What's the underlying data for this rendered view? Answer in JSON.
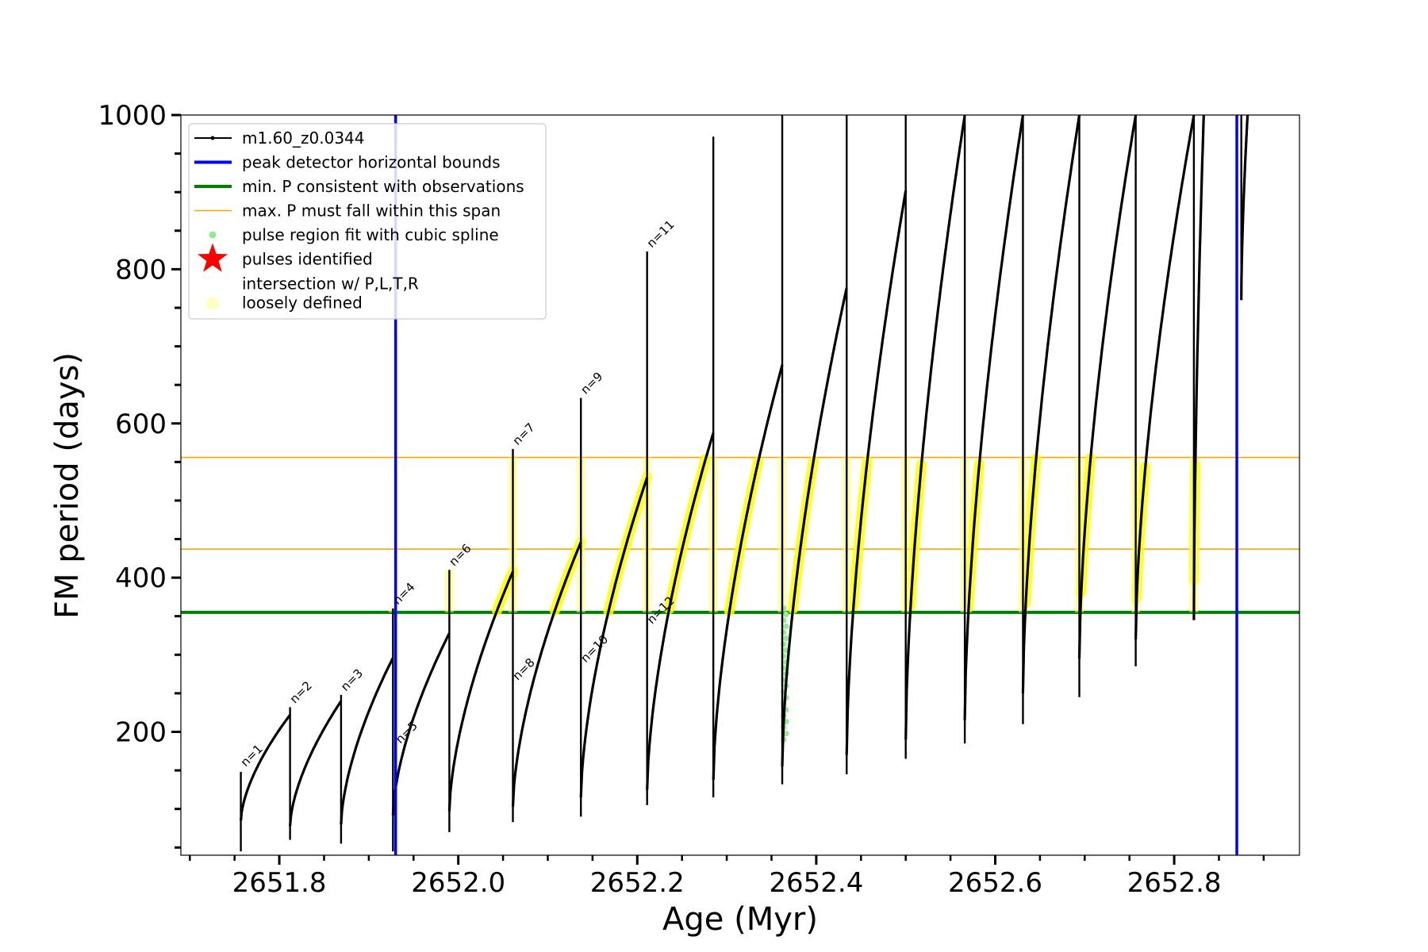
{
  "chart_data": {
    "type": "line",
    "title": "",
    "xlabel": "Age (Myr)",
    "ylabel": "FM period (days)",
    "xlim": [
      2651.69,
      2652.94
    ],
    "ylim": [
      40,
      1000
    ],
    "xticks": [
      {
        "value": 2651.8,
        "label": "2651.8"
      },
      {
        "value": 2652.0,
        "label": "2652.0"
      },
      {
        "value": 2652.2,
        "label": "2652.2"
      },
      {
        "value": 2652.4,
        "label": "2652.4"
      },
      {
        "value": 2652.6,
        "label": "2652.6"
      },
      {
        "value": 2652.8,
        "label": "2652.8"
      }
    ],
    "yticks": [
      {
        "value": 200,
        "label": "200"
      },
      {
        "value": 400,
        "label": "400"
      },
      {
        "value": 600,
        "label": "600"
      },
      {
        "value": 800,
        "label": "800"
      },
      {
        "value": 1000,
        "label": "1000"
      }
    ],
    "reference_lines": {
      "peak_detector_bounds_x": [
        2651.93,
        2652.87
      ],
      "min_period_y": 355,
      "max_period_span_y": [
        437,
        556
      ]
    },
    "legend": {
      "position": "top-left",
      "entries": [
        {
          "key": "series",
          "label": "m1.60_z0.0344",
          "color": "#000000",
          "marker": "line-dot"
        },
        {
          "key": "bounds",
          "label": "peak detector horizontal bounds",
          "color": "#0000ff",
          "marker": "thick-line"
        },
        {
          "key": "minp",
          "label": "min. P consistent with observations",
          "color": "#008000",
          "marker": "thick-line"
        },
        {
          "key": "maxp",
          "label": "max. P must fall within this span",
          "color": "#ffa500",
          "marker": "thin-line"
        },
        {
          "key": "spline",
          "label": "pulse region fit with cubic spline",
          "color": "#90ee90",
          "marker": "dot"
        },
        {
          "key": "pulses",
          "label": "pulses identified",
          "color": "#ff0000",
          "marker": "star"
        },
        {
          "key": "loose",
          "label": "intersection w/ P,L,T,R\nloosely defined",
          "color": "#ffffc0",
          "marker": "big-dot"
        }
      ]
    },
    "series": [
      {
        "name": "m1.60_z0.0344",
        "color": "#000000",
        "pulses": [
          {
            "x0": 2651.757,
            "x1": 2651.812,
            "y_start": 85,
            "y_peak": 222,
            "spike_max": 148,
            "spike_min": 45
          },
          {
            "x0": 2651.812,
            "x1": 2651.869,
            "y_start": 78,
            "y_peak": 240,
            "spike_max": 232,
            "spike_min": 60
          },
          {
            "x0": 2651.869,
            "x1": 2651.927,
            "y_start": 80,
            "y_peak": 296,
            "spike_max": 248,
            "spike_min": 55
          },
          {
            "x0": 2651.927,
            "x1": 2651.99,
            "y_start": 92,
            "y_peak": 328,
            "spike_max": 360,
            "spike_min": 45
          },
          {
            "x0": 2651.99,
            "x1": 2652.061,
            "y_start": 97,
            "y_peak": 408,
            "spike_max": 410,
            "spike_min": 70
          },
          {
            "x0": 2652.061,
            "x1": 2652.137,
            "y_start": 103,
            "y_peak": 446,
            "spike_max": 567,
            "spike_min": 83
          },
          {
            "x0": 2652.137,
            "x1": 2652.211,
            "y_start": 115,
            "y_peak": 530,
            "spike_max": 633,
            "spike_min": 90
          },
          {
            "x0": 2652.211,
            "x1": 2652.285,
            "y_start": 125,
            "y_peak": 588,
            "spike_max": 823,
            "spike_min": 105
          },
          {
            "x0": 2652.285,
            "x1": 2652.362,
            "y_start": 138,
            "y_peak": 676,
            "spike_max": 972,
            "spike_min": 115
          },
          {
            "x0": 2652.362,
            "x1": 2652.434,
            "y_start": 155,
            "y_peak": 776,
            "spike_max": 1000,
            "spike_min": 132
          },
          {
            "x0": 2652.434,
            "x1": 2652.5,
            "y_start": 170,
            "y_peak": 902,
            "spike_max": 1000,
            "spike_min": 145
          },
          {
            "x0": 2652.5,
            "x1": 2652.566,
            "y_start": 190,
            "y_peak": 1000,
            "spike_max": 1000,
            "spike_min": 165
          },
          {
            "x0": 2652.566,
            "x1": 2652.631,
            "y_start": 215,
            "y_peak": 1000,
            "spike_max": 1000,
            "spike_min": 185
          },
          {
            "x0": 2652.631,
            "x1": 2652.694,
            "y_start": 250,
            "y_peak": 1000,
            "spike_max": 1000,
            "spike_min": 210
          },
          {
            "x0": 2652.694,
            "x1": 2652.757,
            "y_start": 295,
            "y_peak": 1000,
            "spike_max": 1000,
            "spike_min": 245
          },
          {
            "x0": 2652.757,
            "x1": 2652.822,
            "y_start": 320,
            "y_peak": 1000,
            "spike_max": 1000,
            "spike_min": 285
          },
          {
            "x0": 2652.822,
            "x1": 2652.833,
            "y_start": 345,
            "y_peak": 1000,
            "spike_max": 1000,
            "spike_min": 345
          },
          {
            "x0": 2652.875,
            "x1": 2652.882,
            "y_start": 760,
            "y_peak": 1000,
            "spike_max": 1000,
            "spike_min": 760
          }
        ]
      }
    ],
    "annotations": [
      {
        "text": "n=1",
        "x": 2651.757,
        "y": 150
      },
      {
        "text": "n=2",
        "x": 2651.812,
        "y": 232
      },
      {
        "text": "n=3",
        "x": 2651.869,
        "y": 248
      },
      {
        "text": "n=4",
        "x": 2651.927,
        "y": 360
      },
      {
        "text": "n=5",
        "x": 2651.93,
        "y": 180
      },
      {
        "text": "n=6",
        "x": 2651.99,
        "y": 410
      },
      {
        "text": "n=7",
        "x": 2652.061,
        "y": 567
      },
      {
        "text": "n=8",
        "x": 2652.061,
        "y": 262
      },
      {
        "text": "n=9",
        "x": 2652.137,
        "y": 633
      },
      {
        "text": "n=10",
        "x": 2652.137,
        "y": 285
      },
      {
        "text": "n=11",
        "x": 2652.211,
        "y": 823
      },
      {
        "text": "n=12",
        "x": 2652.211,
        "y": 335
      }
    ],
    "cubic_spline_region": {
      "x": 2652.365,
      "y_range": [
        190,
        360
      ]
    },
    "pulses_identified": []
  }
}
